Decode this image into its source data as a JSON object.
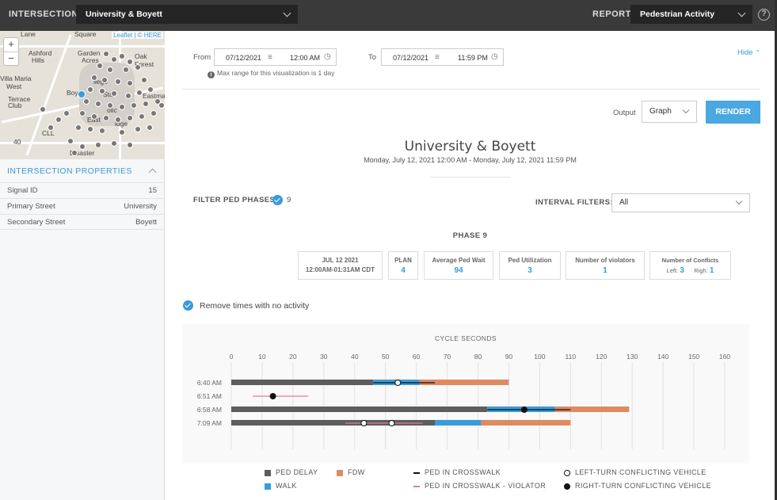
{
  "header": {
    "intersection_label": "INTERSECTION:",
    "intersection_value": "University & Boyett",
    "report_label": "REPORT:",
    "report_value": "Pedestrian Activity",
    "help_symbol": "?"
  },
  "map": {
    "attribution": "Leaflet | © HERE",
    "zoom_in": "+",
    "zoom_out": "−",
    "labels": [
      "Lane",
      "Square",
      "Ashford",
      "Hills",
      "Garden",
      "Acres",
      "Oak",
      "Forest",
      "Villa Maria",
      "West",
      "Terrace",
      "Club",
      "Boy",
      "llege",
      "Sta",
      "Eastma",
      "East",
      "olic",
      "idge",
      "CLL",
      "Disaster",
      "40"
    ]
  },
  "properties": {
    "title": "INTERSECTION PROPERTIES",
    "rows": [
      {
        "key": "Signal ID",
        "value": "15"
      },
      {
        "key": "Primary Street",
        "value": "University"
      },
      {
        "key": "Secondary Street",
        "value": "Boyett"
      }
    ]
  },
  "filters": {
    "from_label": "From",
    "from_date": "07/12/2021",
    "from_time": "12:00 AM",
    "to_label": "To",
    "to_date": "07/12/2021",
    "to_time": "11:59 PM",
    "hint": "Max range for this visualization is 1 day",
    "hide_label": "Hide",
    "output_label": "Output",
    "output_value": "Graph",
    "render_label": "RENDER"
  },
  "report": {
    "title": "University & Boyett",
    "subtitle": "Monday, July 12, 2021 12:00 AM - Monday, July 12, 2021 11:59 PM",
    "filter_ped_label": "FILTER PED PHASES:",
    "filter_ped_value": "9",
    "interval_label": "INTERVAL FILTERS:",
    "interval_value": "All",
    "phase_title": "PHASE 9",
    "stats": {
      "date": "JUL 12 2021",
      "time_range": "12:00AM-01:31AM CDT",
      "plan_label": "PLAN",
      "plan_value": "4",
      "avg_wait_label": "Average Ped Wait",
      "avg_wait_value": "94",
      "util_label": "Ped Utilization",
      "util_value": "3",
      "violators_label": "Number of violators",
      "violators_value": "1",
      "conflicts_label": "Number of Conflicts",
      "left_label": "Left:",
      "left_value": "3",
      "right_label": "Righ:",
      "right_value": "1"
    },
    "remove_label": "Remove times with no activity"
  },
  "colors": {
    "ped_delay": "#5d5d5d",
    "walk": "#3a9bd9",
    "fdw": "#e08a62",
    "violator": "#e47b97",
    "accent": "#3a9bd9"
  },
  "chart_data": {
    "type": "bar",
    "title": "CYCLE SECONDS",
    "xlim": [
      0,
      160
    ],
    "x_ticks": [
      0,
      10,
      20,
      30,
      40,
      50,
      60,
      70,
      80,
      90,
      100,
      110,
      120,
      130,
      140,
      150,
      160
    ],
    "rows": [
      {
        "label": "6:40 AM",
        "ped_delay": [
          0,
          46
        ],
        "walk": [
          46,
          61
        ],
        "fdw": [
          61,
          90
        ],
        "ped_in_crosswalk": [
          [
            46,
            66
          ]
        ],
        "violator": [],
        "left_turn": [
          54
        ],
        "right_turn": []
      },
      {
        "label": "6:51 AM",
        "ped_delay": null,
        "walk": null,
        "fdw": null,
        "ped_in_crosswalk": [],
        "violator": [
          [
            7,
            25
          ]
        ],
        "left_turn": [],
        "right_turn": [
          13.5
        ]
      },
      {
        "label": "6:58 AM",
        "ped_delay": [
          0,
          83
        ],
        "walk": [
          83,
          105
        ],
        "fdw": [
          105,
          129
        ],
        "ped_in_crosswalk": [
          [
            83,
            110
          ]
        ],
        "violator": [],
        "left_turn": [],
        "right_turn": [
          95
        ]
      },
      {
        "label": "7:09 AM",
        "ped_delay": [
          0,
          66
        ],
        "walk": [
          66,
          81
        ],
        "fdw": [
          81,
          110
        ],
        "ped_in_crosswalk": [],
        "violator": [
          [
            37,
            62
          ]
        ],
        "left_turn": [
          43,
          52
        ],
        "right_turn": []
      }
    ],
    "legend": [
      {
        "key": "ped_delay",
        "label": "PED DELAY"
      },
      {
        "key": "fdw",
        "label": "FDW"
      },
      {
        "key": "ped_in_crosswalk",
        "label": "PED IN CROSSWALK"
      },
      {
        "key": "left_turn",
        "label": "LEFT-TURN CONFLICTING VEHICLE"
      },
      {
        "key": "walk",
        "label": "WALK"
      },
      {
        "key": "violator",
        "label": "PED IN CROSSWALK - VIOLATOR"
      },
      {
        "key": "right_turn",
        "label": "RIGHT-TURN CONFLICTING VEHICLE"
      }
    ]
  }
}
